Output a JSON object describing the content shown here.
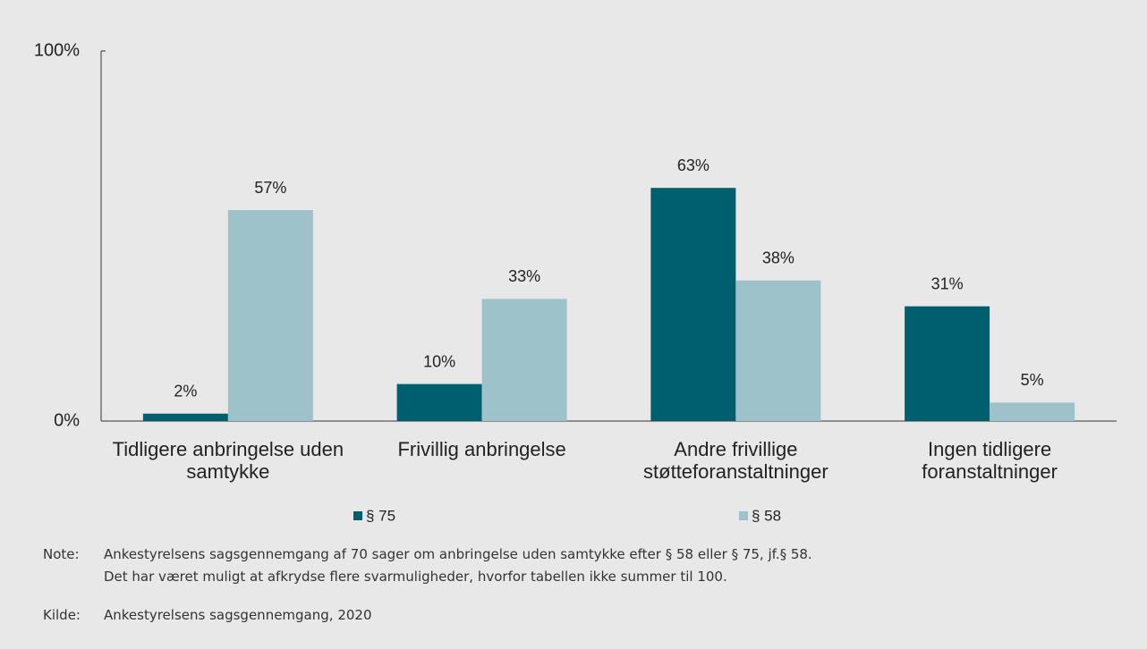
{
  "chart_data": {
    "type": "bar",
    "categories": [
      "Tidligere anbringelse uden samtykke",
      "Frivillig anbringelse",
      "Andre frivillige støtteforanstaltninger",
      "Ingen tidligere foranstaltninger"
    ],
    "series": [
      {
        "name": "§ 75",
        "color": "#005f6e",
        "values": [
          2,
          10,
          63,
          31
        ],
        "value_labels": [
          "2%",
          "10%",
          "63%",
          "31%"
        ]
      },
      {
        "name": "§ 58",
        "color": "#9ec2c9",
        "values": [
          57,
          33,
          38,
          5
        ],
        "value_labels": [
          "57%",
          "33%",
          "38%",
          "5%"
        ]
      }
    ],
    "ylim": [
      0,
      100
    ],
    "yticks": [
      {
        "value": 0,
        "label": "0%"
      },
      {
        "value": 100,
        "label": "100%"
      }
    ],
    "grid": false,
    "legend": "bottom"
  },
  "notes": {
    "label": "Note:",
    "lines": [
      "Ankestyrelsens sagsgennemgang af 70 sager om anbringelse uden samtykke efter § 58 eller § 75, jf.§ 58.",
      "Det har været muligt at afkrydse flere svarmuligheder, hvorfor tabellen ikke summer til 100."
    ]
  },
  "source": {
    "label": "Kilde:",
    "text": "Ankestyrelsens sagsgennemgang, 2020"
  }
}
